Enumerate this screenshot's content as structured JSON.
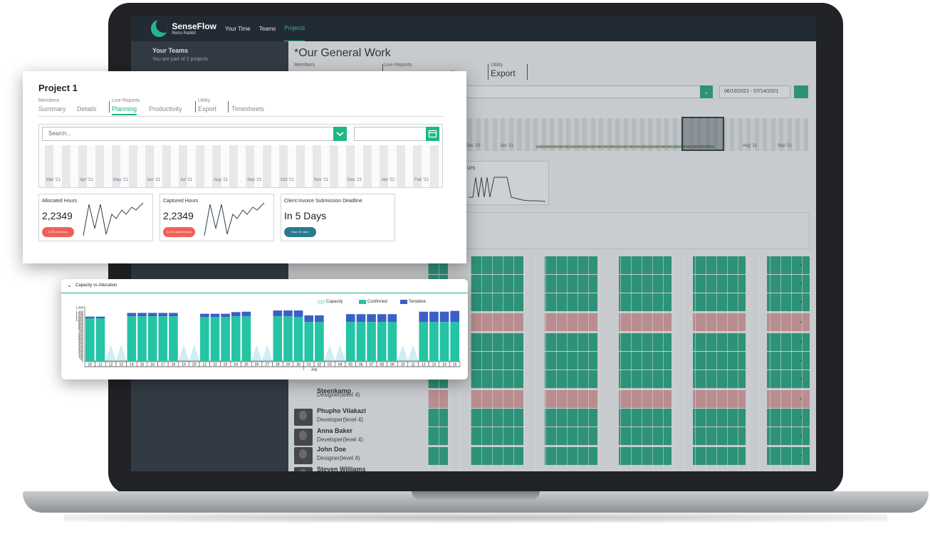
{
  "app": {
    "logo_title": "SenseFlow",
    "logo_subtitle": "Retro Rabbit",
    "nav": [
      "Your Time",
      "Teams",
      "Projects"
    ],
    "nav_active": "Projects"
  },
  "sidebar": {
    "title": "Your Teams",
    "subtitle": "You are part of 2 projects"
  },
  "main": {
    "title": "*Our General Work",
    "tab_groups": [
      {
        "caption": "Members",
        "label": ""
      },
      {
        "caption": "Live Reports",
        "label": "ity"
      },
      {
        "caption": "Utility",
        "label": "Export"
      }
    ],
    "date_range": "06/10/2021 - 07/14/2021",
    "timeline_labels": [
      "Dec '20",
      "Jan '21",
      "Aug '21",
      "Sep '21"
    ],
    "card_label": "urs",
    "people": [
      {
        "name": "Steenkamp",
        "role": "Designer(level 4)"
      },
      {
        "name": "Phupho Vilakazi",
        "role": "Developer(level 4)"
      },
      {
        "name": "Anna Baker",
        "role": "Developer(level 4)"
      },
      {
        "name": "John Doe",
        "role": "Designer(level 4)"
      },
      {
        "name": "Steven Williams",
        "role": "Developer(level 4)"
      }
    ],
    "first_row_role": "Developer(level 4)"
  },
  "project_card": {
    "title": "Project 1",
    "tabs": [
      {
        "caption": "Members",
        "label": "Summary",
        "active": false
      },
      {
        "caption": "",
        "label": "Details",
        "active": false
      },
      {
        "caption": "Live Reports",
        "label": "Planning",
        "active": true
      },
      {
        "caption": "",
        "label": "Productivity",
        "active": false
      },
      {
        "caption": "Utility",
        "label": "Export",
        "active": false
      },
      {
        "caption": "",
        "label": "Timesheets",
        "active": false
      }
    ],
    "search_placeholder": "Search...",
    "timeline_labels": [
      "Mar '21",
      "Apr '21",
      "May '21",
      "Jun '21",
      "Jul '21",
      "Aug '21",
      "Sep '21",
      "Oct '21",
      "Nov '21",
      "Dec '21",
      "Jan '22",
      "Feb '22"
    ],
    "stats": [
      {
        "label": "Allocated Hours",
        "value": "2,2349",
        "pill": "2,200 lost hours",
        "pill_color": "#f06059"
      },
      {
        "label": "Captured Hours",
        "value": "2,2349",
        "pill": "2,200 wasted hours",
        "pill_color": "#f06059"
      },
      {
        "label": "Client Invoice Submission Deadline",
        "value": "In 5 Days",
        "pill": "Due: 15 June",
        "pill_color": "#2a7b91"
      }
    ]
  },
  "capacity_card": {
    "title": "Capacity vs Allocation",
    "legend": [
      {
        "name": "Capacity",
        "color": "#cdeef3"
      },
      {
        "name": "Confirmed",
        "color": "#24c4a4"
      },
      {
        "name": "Tentative",
        "color": "#3b5fc6"
      }
    ]
  },
  "chart_data": {
    "type": "bar",
    "title": "Capacity vs Allocation",
    "xlabel": "July",
    "ylabel": "",
    "ylim": [
      0,
      1300
    ],
    "yticks": [
      0,
      50,
      100,
      150,
      200,
      250,
      300,
      350,
      400,
      450,
      500,
      550,
      600,
      650,
      700,
      750,
      800,
      850,
      900,
      950,
      1000,
      1050,
      1100,
      1150,
      1200,
      1300
    ],
    "categories": [
      "10",
      "11",
      "12",
      "13",
      "14",
      "15",
      "16",
      "17",
      "18",
      "19",
      "20",
      "21",
      "22",
      "23",
      "24",
      "25",
      "26",
      "27",
      "28",
      "29",
      "30",
      "01",
      "02",
      "03",
      "04",
      "05",
      "06",
      "07",
      "08",
      "09",
      "10",
      "11",
      "12",
      "13",
      "14",
      "15"
    ],
    "series": [
      {
        "name": "Confirmed",
        "values": [
          1040,
          1040,
          0,
          0,
          1090,
          1090,
          1090,
          1090,
          1090,
          0,
          0,
          1070,
          1070,
          1070,
          1090,
          1090,
          0,
          0,
          1090,
          1090,
          1070,
          950,
          950,
          0,
          0,
          950,
          950,
          950,
          950,
          950,
          0,
          0,
          950,
          950,
          950,
          950
        ]
      },
      {
        "name": "Tentative",
        "values": [
          40,
          40,
          0,
          0,
          80,
          80,
          80,
          80,
          80,
          0,
          0,
          80,
          80,
          80,
          100,
          110,
          0,
          0,
          140,
          140,
          160,
          160,
          160,
          0,
          0,
          190,
          190,
          190,
          190,
          190,
          0,
          0,
          250,
          250,
          250,
          270
        ]
      },
      {
        "name": "Capacity",
        "values": [
          0,
          0,
          400,
          400,
          0,
          0,
          0,
          0,
          0,
          400,
          400,
          0,
          0,
          0,
          0,
          0,
          400,
          400,
          0,
          0,
          0,
          0,
          0,
          400,
          400,
          0,
          0,
          0,
          0,
          0,
          400,
          400,
          0,
          0,
          0,
          0
        ]
      }
    ]
  }
}
